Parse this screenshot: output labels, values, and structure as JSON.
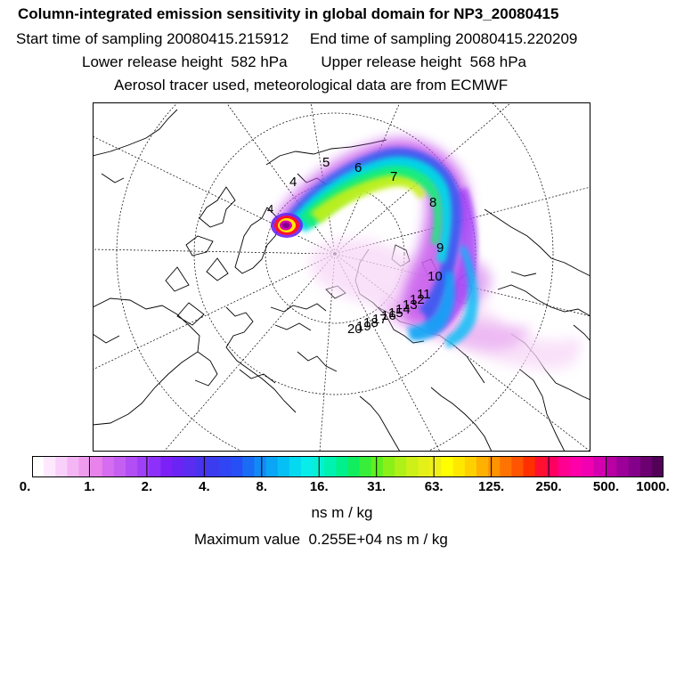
{
  "header": {
    "title": "Column-integrated emission sensitivity in global domain for NP3_20080415",
    "sampling": "Start time of sampling 20080415.215912     End time of sampling 20080415.220209",
    "release": "Lower release height  582 hPa        Upper release height  568 hPa",
    "tracer": "Aerosol tracer used, meteorological data are from ECMWF"
  },
  "map": {
    "projection": "polar stereographic (north pole)",
    "time_labels": [
      "4",
      "5",
      "6",
      "7",
      "8",
      "9",
      "10",
      "11",
      "12",
      "13",
      "14",
      "15",
      "16",
      "17",
      "18",
      "19",
      "20"
    ]
  },
  "colorbar": {
    "tick_labels": [
      "0.",
      "1.",
      "2.",
      "4.",
      "8.",
      "16.",
      "31.",
      "63.",
      "125.",
      "250.",
      "500.",
      "1000."
    ],
    "colors": [
      "#ffffff",
      "#fde8fd",
      "#f9d0f9",
      "#f4b5f4",
      "#ef9cef",
      "#e982ea",
      "#d66cf0",
      "#c45ff2",
      "#b24ef5",
      "#a03ff8",
      "#8d30f9",
      "#7b21f8",
      "#6a25f4",
      "#5a2df0",
      "#4834ee",
      "#3b3cf0",
      "#3045f3",
      "#264ff5",
      "#1a6cf5",
      "#128af5",
      "#0aa5f5",
      "#05c0f5",
      "#05d9f0",
      "#08ecea",
      "#08f0d2",
      "#00f2b0",
      "#00f08c",
      "#10ee60",
      "#38ee3a",
      "#60f020",
      "#8af018",
      "#aef018",
      "#ccf018",
      "#e4f018",
      "#f0f018",
      "#ffff00",
      "#ffe800",
      "#ffd000",
      "#ffb000",
      "#ff9400",
      "#ff7400",
      "#ff5400",
      "#ff3000",
      "#ff1030",
      "#ff0060",
      "#ff0090",
      "#ff00a8",
      "#f000b0",
      "#d400b0",
      "#b800a4",
      "#9c0098",
      "#84008a",
      "#6c0070",
      "#520058"
    ]
  },
  "units": "ns m / kg",
  "max_value": "Maximum value  0.255E+04 ns m / kg"
}
